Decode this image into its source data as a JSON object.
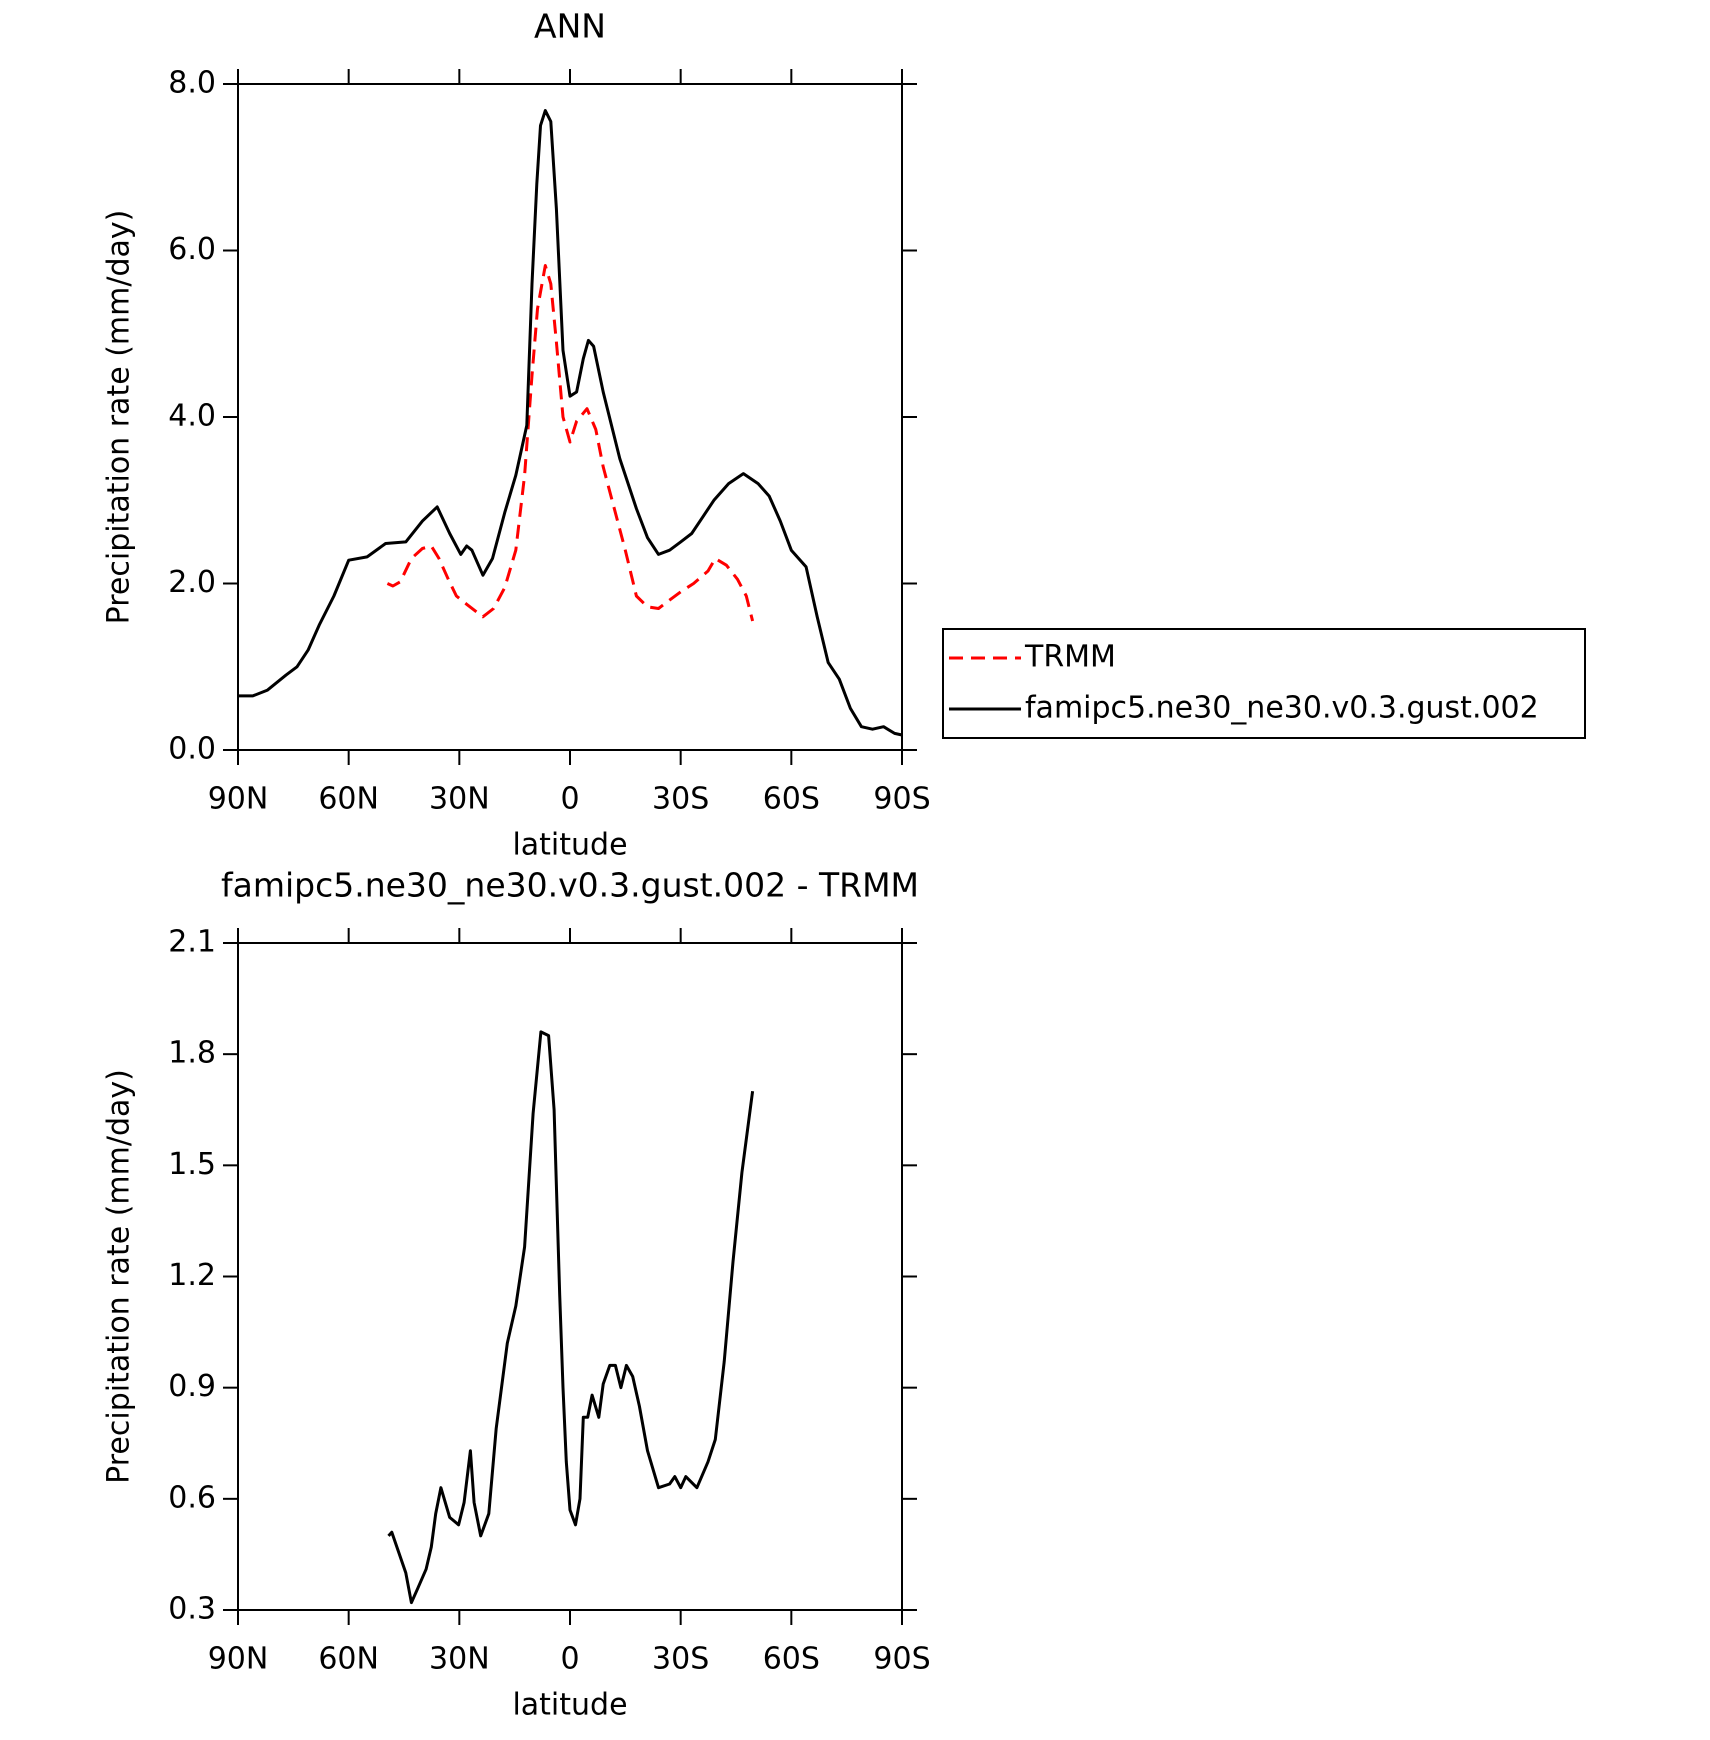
{
  "chart_data": [
    {
      "type": "line",
      "title": "ANN",
      "xlabel": "latitude",
      "ylabel": "Precipitation rate (mm/day)",
      "xlim": [
        90,
        -90
      ],
      "xticks": [
        {
          "value": 90,
          "label": "90N"
        },
        {
          "value": 60,
          "label": "60N"
        },
        {
          "value": 30,
          "label": "30N"
        },
        0,
        {
          "value": -30,
          "label": "30S"
        },
        {
          "value": -60,
          "label": "60S"
        },
        {
          "value": -90,
          "label": "90S"
        }
      ],
      "ylim": [
        0,
        8
      ],
      "yticks": [
        {
          "value": 0,
          "label": "0.0"
        },
        {
          "value": 2,
          "label": "2.0"
        },
        {
          "value": 4,
          "label": "4.0"
        },
        {
          "value": 6,
          "label": "6.0"
        },
        {
          "value": 8,
          "label": "8.0"
        }
      ],
      "legend": "right",
      "series": [
        {
          "name": "TRMM",
          "color": "#ff0000",
          "linestyle": "dashed",
          "x": [
            49.5,
            48,
            46,
            43,
            40,
            37.6,
            35.5,
            33,
            30.8,
            28,
            23.6,
            20.7,
            17.7,
            14.7,
            12.3,
            10.3,
            8.8,
            6.7,
            5.2,
            3.7,
            1.9,
            0,
            -1.8,
            -4.6,
            -7,
            -9,
            -12,
            -15,
            -18,
            -21,
            -24,
            -27,
            -30,
            -33.5,
            -37.4,
            -39.4,
            -42.4,
            -45.4,
            -47.8,
            -49.5
          ],
          "values": [
            2.0,
            1.97,
            2.02,
            2.3,
            2.42,
            2.45,
            2.3,
            2.05,
            1.85,
            1.75,
            1.6,
            1.7,
            1.95,
            2.4,
            3.3,
            4.5,
            5.3,
            5.82,
            5.6,
            4.9,
            4.0,
            3.7,
            3.95,
            4.1,
            3.85,
            3.4,
            2.9,
            2.4,
            1.85,
            1.72,
            1.7,
            1.8,
            1.9,
            2.0,
            2.15,
            2.3,
            2.22,
            2.05,
            1.85,
            1.55
          ]
        },
        {
          "name": "famipc5.ne30_ne30.v0.3.gust.002",
          "color": "#000000",
          "linestyle": "solid",
          "x": [
            90,
            86,
            82,
            77,
            74,
            71,
            68,
            64,
            60,
            55,
            50,
            44.5,
            40,
            36,
            32.6,
            29.6,
            28,
            26.6,
            23.6,
            21,
            17.7,
            14.7,
            11.7,
            10.3,
            9,
            8,
            6.7,
            5.2,
            3.7,
            1.9,
            0,
            -1.8,
            -3.6,
            -5,
            -6.4,
            -9,
            -13.5,
            -18,
            -21,
            -24,
            -27,
            -30,
            -33,
            -36,
            -39,
            -43,
            -47,
            -51,
            -54,
            -57,
            -60,
            -64,
            -67,
            -70,
            -73,
            -76,
            -79,
            -82,
            -85,
            -88,
            -90
          ],
          "values": [
            0.65,
            0.65,
            0.72,
            0.9,
            1.0,
            1.2,
            1.5,
            1.85,
            2.28,
            2.32,
            2.48,
            2.5,
            2.75,
            2.92,
            2.6,
            2.35,
            2.45,
            2.4,
            2.1,
            2.3,
            2.85,
            3.3,
            3.9,
            5.6,
            6.8,
            7.5,
            7.68,
            7.55,
            6.5,
            4.8,
            4.25,
            4.3,
            4.7,
            4.92,
            4.85,
            4.3,
            3.5,
            2.9,
            2.55,
            2.35,
            2.4,
            2.5,
            2.6,
            2.8,
            3.0,
            3.2,
            3.32,
            3.2,
            3.05,
            2.75,
            2.4,
            2.2,
            1.6,
            1.05,
            0.85,
            0.5,
            0.28,
            0.25,
            0.28,
            0.2,
            0.18
          ]
        }
      ]
    },
    {
      "type": "line",
      "title": "famipc5.ne30_ne30.v0.3.gust.002 - TRMM",
      "xlabel": "latitude",
      "ylabel": "Precipitation rate (mm/day)",
      "xlim": [
        90,
        -90
      ],
      "xticks": [
        {
          "value": 90,
          "label": "90N"
        },
        {
          "value": 60,
          "label": "60N"
        },
        {
          "value": 30,
          "label": "30N"
        },
        0,
        {
          "value": -30,
          "label": "30S"
        },
        {
          "value": -60,
          "label": "60S"
        },
        {
          "value": -90,
          "label": "90S"
        }
      ],
      "ylim": [
        0.3,
        2.1
      ],
      "yticks": [
        0.3,
        0.6,
        0.9,
        1.2,
        1.5,
        1.8,
        2.1
      ],
      "series": [
        {
          "color": "#000000",
          "linestyle": "solid",
          "x": [
            49.2,
            48.3,
            44.5,
            43,
            41.2,
            39,
            37.6,
            36.4,
            35,
            32.6,
            30.2,
            28.7,
            27,
            26,
            24.2,
            22,
            20,
            17,
            14.7,
            12.3,
            10,
            7.9,
            5.8,
            4.3,
            2.8,
            1.9,
            1,
            0,
            -1.5,
            -2.7,
            -3.6,
            -4.8,
            -6,
            -7.8,
            -9,
            -10.8,
            -12.3,
            -13.8,
            -15.3,
            -17,
            -18.8,
            -21,
            -24,
            -27,
            -28.4,
            -30,
            -31.4,
            -34.4,
            -37.4,
            -39.4,
            -41.8,
            -44.2,
            -46.6,
            -49.5
          ],
          "values": [
            0.5,
            0.51,
            0.4,
            0.32,
            0.36,
            0.41,
            0.47,
            0.56,
            0.63,
            0.55,
            0.53,
            0.59,
            0.73,
            0.59,
            0.5,
            0.56,
            0.79,
            1.02,
            1.12,
            1.28,
            1.64,
            1.86,
            1.85,
            1.65,
            1.15,
            0.9,
            0.7,
            0.57,
            0.53,
            0.6,
            0.82,
            0.82,
            0.88,
            0.82,
            0.91,
            0.96,
            0.96,
            0.9,
            0.96,
            0.93,
            0.85,
            0.73,
            0.63,
            0.64,
            0.66,
            0.63,
            0.66,
            0.63,
            0.7,
            0.76,
            0.97,
            1.24,
            1.48,
            1.7
          ]
        }
      ]
    }
  ]
}
